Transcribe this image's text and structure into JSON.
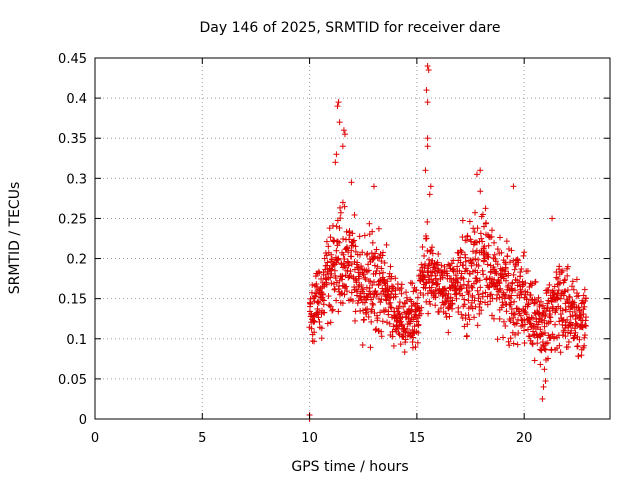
{
  "chart_data": {
    "type": "scatter",
    "title": "Day 146 of 2025, SRMTID for receiver dare",
    "xlabel": "GPS time / hours",
    "ylabel": "SRMTID / TECUs",
    "xlim": [
      0,
      24
    ],
    "ylim": [
      0,
      0.45
    ],
    "xticks": [
      0,
      5,
      10,
      15,
      20
    ],
    "yticks": [
      0,
      0.05,
      0.1,
      0.15,
      0.2,
      0.25,
      0.3,
      0.35,
      0.4,
      0.45
    ],
    "grid": true,
    "marker": "+",
    "color": "#e00000",
    "seed": 146,
    "envelope": [
      {
        "x": 10.0,
        "lo": 0.08,
        "hi": 0.19
      },
      {
        "x": 10.5,
        "lo": 0.08,
        "hi": 0.22
      },
      {
        "x": 11.0,
        "lo": 0.1,
        "hi": 0.27
      },
      {
        "x": 11.5,
        "lo": 0.11,
        "hi": 0.3
      },
      {
        "x": 12.0,
        "lo": 0.09,
        "hi": 0.29
      },
      {
        "x": 12.5,
        "lo": 0.08,
        "hi": 0.24
      },
      {
        "x": 13.0,
        "lo": 0.07,
        "hi": 0.28
      },
      {
        "x": 13.5,
        "lo": 0.08,
        "hi": 0.24
      },
      {
        "x": 14.0,
        "lo": 0.07,
        "hi": 0.19
      },
      {
        "x": 14.5,
        "lo": 0.06,
        "hi": 0.18
      },
      {
        "x": 15.0,
        "lo": 0.07,
        "hi": 0.2
      },
      {
        "x": 15.5,
        "lo": 0.11,
        "hi": 0.27
      },
      {
        "x": 16.0,
        "lo": 0.1,
        "hi": 0.22
      },
      {
        "x": 16.5,
        "lo": 0.1,
        "hi": 0.22
      },
      {
        "x": 17.0,
        "lo": 0.09,
        "hi": 0.25
      },
      {
        "x": 17.5,
        "lo": 0.08,
        "hi": 0.27
      },
      {
        "x": 18.0,
        "lo": 0.1,
        "hi": 0.3
      },
      {
        "x": 18.5,
        "lo": 0.1,
        "hi": 0.28
      },
      {
        "x": 19.0,
        "lo": 0.07,
        "hi": 0.24
      },
      {
        "x": 19.5,
        "lo": 0.07,
        "hi": 0.25
      },
      {
        "x": 20.0,
        "lo": 0.08,
        "hi": 0.22
      },
      {
        "x": 20.5,
        "lo": 0.05,
        "hi": 0.19
      },
      {
        "x": 21.0,
        "lo": 0.03,
        "hi": 0.18
      },
      {
        "x": 21.5,
        "lo": 0.06,
        "hi": 0.24
      },
      {
        "x": 22.0,
        "lo": 0.06,
        "hi": 0.2
      },
      {
        "x": 22.5,
        "lo": 0.05,
        "hi": 0.2
      },
      {
        "x": 22.9,
        "lo": 0.05,
        "hi": 0.19
      }
    ],
    "outliers": [
      {
        "x": 10.0,
        "y": 0.0
      },
      {
        "x": 10.0,
        "y": 0.005
      },
      {
        "x": 11.3,
        "y": 0.39
      },
      {
        "x": 11.35,
        "y": 0.395
      },
      {
        "x": 11.4,
        "y": 0.37
      },
      {
        "x": 11.25,
        "y": 0.33
      },
      {
        "x": 11.2,
        "y": 0.32
      },
      {
        "x": 11.6,
        "y": 0.36
      },
      {
        "x": 11.65,
        "y": 0.355
      },
      {
        "x": 11.55,
        "y": 0.34
      },
      {
        "x": 15.5,
        "y": 0.44
      },
      {
        "x": 15.55,
        "y": 0.435
      },
      {
        "x": 15.45,
        "y": 0.41
      },
      {
        "x": 15.5,
        "y": 0.395
      },
      {
        "x": 15.5,
        "y": 0.35
      },
      {
        "x": 15.5,
        "y": 0.34
      },
      {
        "x": 15.4,
        "y": 0.31
      },
      {
        "x": 15.6,
        "y": 0.28
      },
      {
        "x": 15.65,
        "y": 0.29
      },
      {
        "x": 17.95,
        "y": 0.31
      },
      {
        "x": 17.8,
        "y": 0.305
      },
      {
        "x": 19.5,
        "y": 0.29
      },
      {
        "x": 13.0,
        "y": 0.29
      },
      {
        "x": 11.95,
        "y": 0.295
      },
      {
        "x": 21.3,
        "y": 0.25
      },
      {
        "x": 20.85,
        "y": 0.025
      },
      {
        "x": 20.9,
        "y": 0.04
      }
    ]
  }
}
